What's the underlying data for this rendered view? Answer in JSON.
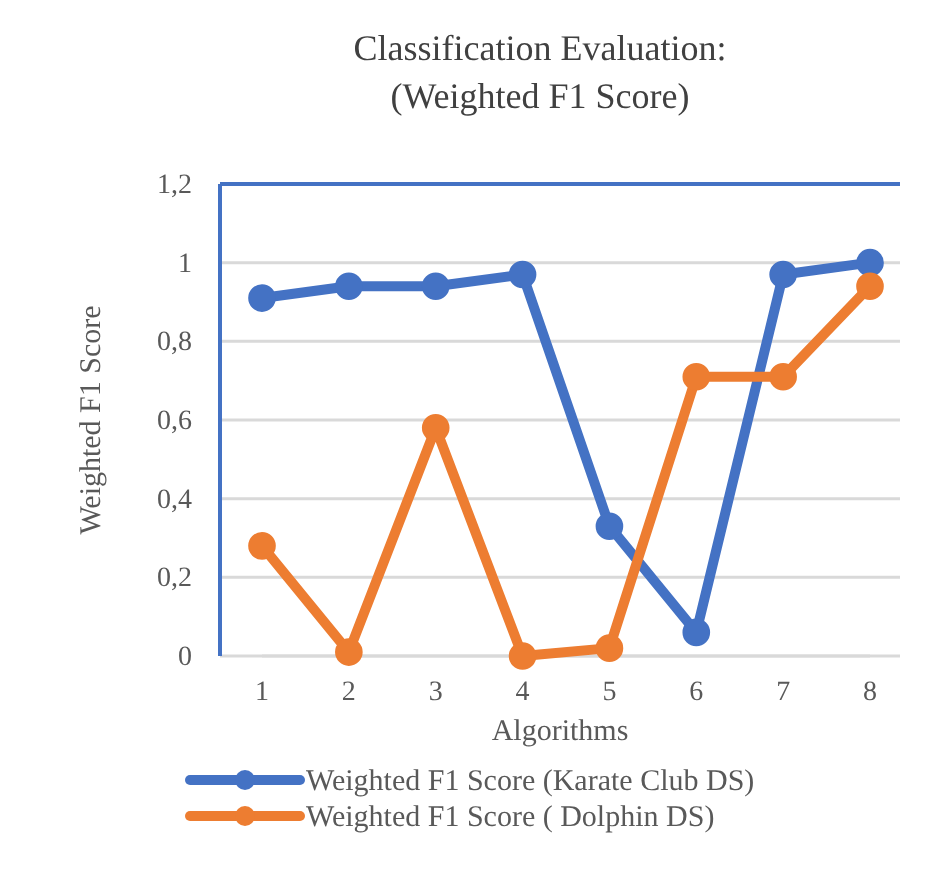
{
  "chart_data": {
    "type": "line",
    "title": "Classification Evaluation:",
    "subtitle": "(Weighted F1 Score)",
    "xlabel": "Algorithms",
    "ylabel": "Weighted F1 Score",
    "categories": [
      "1",
      "2",
      "3",
      "4",
      "5",
      "6",
      "7",
      "8"
    ],
    "series": [
      {
        "name": "Weighted F1 Score (Karate Club DS)",
        "color": "#4472c4",
        "values": [
          0.91,
          0.94,
          0.94,
          0.97,
          0.33,
          0.06,
          0.97,
          1.0
        ]
      },
      {
        "name": "Weighted F1 Score ( Dolphin DS)",
        "color": "#ed7d31",
        "values": [
          0.28,
          0.01,
          0.58,
          0.0,
          0.02,
          0.71,
          0.71,
          0.94
        ]
      }
    ],
    "ylim": [
      0,
      1.2
    ],
    "yticks": [
      {
        "value": 0,
        "label": "0"
      },
      {
        "value": 0.2,
        "label": "0,2"
      },
      {
        "value": 0.4,
        "label": "0,4"
      },
      {
        "value": 0.6,
        "label": "0,6"
      },
      {
        "value": 0.8,
        "label": "0,8"
      },
      {
        "value": 1,
        "label": "1"
      },
      {
        "value": 1.2,
        "label": "1,2"
      }
    ],
    "grid": "y",
    "legend": "bottom",
    "marker": "circle",
    "line_style": "solid"
  }
}
